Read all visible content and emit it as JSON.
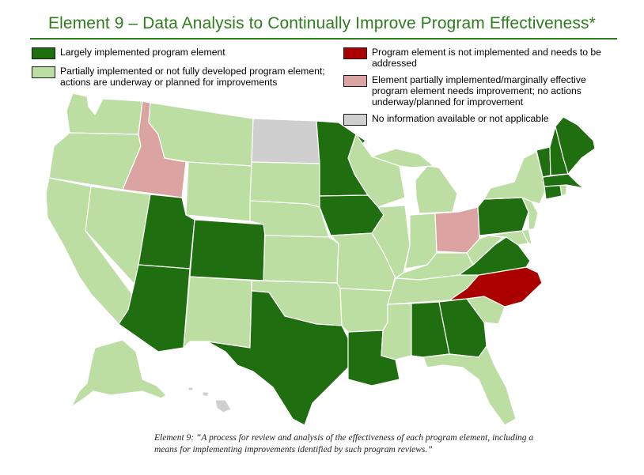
{
  "title": "Element 9 – Data Analysis to Continually Improve Program Effectiveness*",
  "legend": {
    "largely": {
      "label": "Largely implemented program element",
      "color": "#1f6e0f"
    },
    "partial": {
      "label": "Partially implemented or not fully developed program element; actions are underway or planned for improvements",
      "color": "#bddea3"
    },
    "not_implemented": {
      "label": "Program element is not implemented and needs to be addressed",
      "color": "#aa0000"
    },
    "marginal": {
      "label": "Element partially implemented/marginally effective program element needs improvement; no actions underway/planned for improvement",
      "color": "#dca3a3"
    },
    "no_info": {
      "label": "No information available or not applicable",
      "color": "#cfcfcf"
    }
  },
  "caption": "Element 9: “A process for review and analysis of the effectiveness of each program element, including a means for implementing improvements identified by such program reviews.”",
  "states": {
    "WA": "partial",
    "OR": "partial",
    "CA": "partial",
    "ID": "marginal",
    "NV": "partial",
    "MT": "partial",
    "WY": "partial",
    "UT": "largely",
    "CO": "largely",
    "AZ": "largely",
    "NM": "partial",
    "ND": "no_info",
    "SD": "partial",
    "NE": "partial",
    "KS": "partial",
    "OK": "partial",
    "TX": "largely",
    "MN": "largely",
    "IA": "largely",
    "MO": "partial",
    "AR": "partial",
    "LA": "largely",
    "WI": "partial",
    "IL": "partial",
    "MI": "partial",
    "IN": "partial",
    "OH": "marginal",
    "KY": "partial",
    "TN": "partial",
    "MS": "partial",
    "AL": "largely",
    "GA": "largely",
    "FL": "partial",
    "SC": "partial",
    "NC": "not_implemented",
    "VA": "largely",
    "WV": "partial",
    "PA": "largely",
    "NY": "partial",
    "NJ": "partial",
    "DE": "partial",
    "MD": "partial",
    "CT": "largely",
    "RI": "partial",
    "MA": "largely",
    "VT": "largely",
    "NH": "largely",
    "ME": "largely",
    "AK": "partial",
    "HI": "no_info"
  }
}
